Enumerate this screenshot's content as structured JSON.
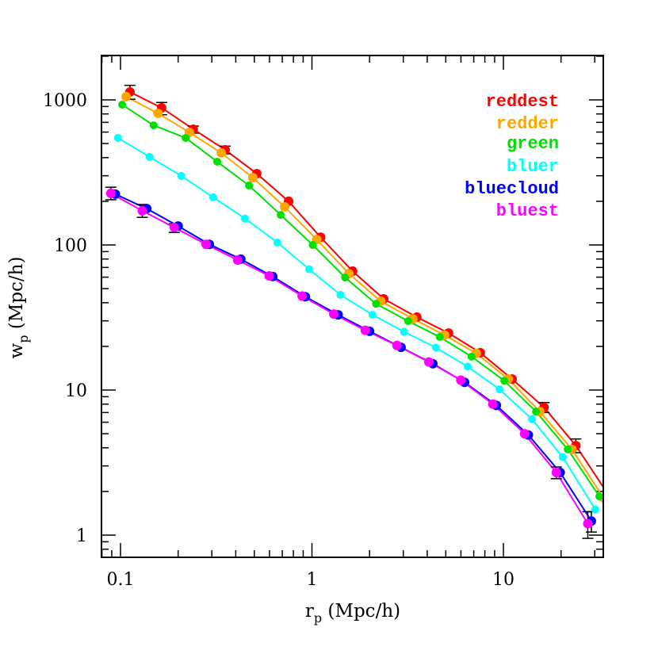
{
  "chart_data": {
    "type": "line",
    "title": "",
    "xlabel": "r_p (Mpc/h)",
    "ylabel": "w_p (Mpc/h)",
    "xscale": "log",
    "yscale": "log",
    "xlim": [
      0.08,
      34
    ],
    "ylim": [
      0.7,
      2020
    ],
    "xticks": [
      0.1,
      1,
      10
    ],
    "xtick_labels": [
      "0.1",
      "1",
      "10"
    ],
    "yticks": [
      1,
      10,
      100,
      1000
    ],
    "ytick_labels": [
      "1",
      "10",
      "100",
      "1000"
    ],
    "grid": false,
    "legend_position": "upper right",
    "markers": "filled circles with error bars",
    "series": [
      {
        "name": "reddest",
        "color": "#ff0000",
        "x": [
          0.112,
          0.164,
          0.24,
          0.352,
          0.515,
          0.755,
          1.11,
          1.63,
          2.37,
          3.53,
          5.17,
          7.57,
          11.1,
          16.3,
          23.9
        ],
        "y": [
          1134,
          882,
          628,
          453,
          310,
          200,
          113,
          66,
          42.5,
          31.8,
          24.7,
          18.1,
          11.9,
          7.6,
          4.14
        ],
        "line_end": [
          34,
          2.05
        ]
      },
      {
        "name": "redder",
        "color": "#ffa500",
        "x": [
          0.107,
          0.157,
          0.229,
          0.336,
          0.491,
          0.72,
          1.06,
          1.56,
          2.29,
          3.37,
          4.93,
          7.22,
          10.6,
          15.5,
          22.8,
          33.4
        ],
        "y": [
          1052,
          808,
          597,
          431,
          291,
          183,
          109,
          63.5,
          40.9,
          31.0,
          23.9,
          17.9,
          11.9,
          7.1,
          3.9,
          1.8
        ]
      },
      {
        "name": "green",
        "color": "#00e000",
        "x": [
          0.102,
          0.149,
          0.219,
          0.32,
          0.469,
          0.687,
          1.01,
          1.49,
          2.16,
          3.18,
          4.65,
          6.82,
          10.1,
          14.8,
          21.7,
          31.7
        ],
        "y": [
          927,
          668,
          547,
          375,
          257,
          161,
          100,
          59.7,
          39.3,
          29.9,
          23.2,
          17.0,
          11.6,
          7.1,
          3.9,
          1.85
        ]
      },
      {
        "name": "bluer",
        "color": "#00ffff",
        "x": [
          0.097,
          0.142,
          0.208,
          0.305,
          0.447,
          0.66,
          0.967,
          1.41,
          2.07,
          3.03,
          4.44,
          6.51,
          9.55,
          14.1,
          20.4,
          30.2
        ],
        "y": [
          547,
          404,
          299,
          213,
          152,
          104,
          68,
          45.3,
          33.0,
          25.2,
          19.6,
          14.5,
          10.1,
          6.3,
          3.45,
          1.5
        ]
      },
      {
        "name": "bluecloud",
        "color": "#0000ff",
        "x": [
          0.094,
          0.137,
          0.2,
          0.291,
          0.425,
          0.624,
          0.923,
          1.37,
          2.0,
          2.92,
          4.28,
          6.27,
          9.19,
          13.5,
          19.8,
          28.8
        ],
        "y": [
          224,
          178,
          135,
          101,
          79.8,
          60.6,
          44.0,
          33.0,
          25.4,
          19.7,
          15.2,
          11.3,
          7.84,
          4.9,
          2.7,
          1.25
        ]
      },
      {
        "name": "bluest",
        "color": "#ff00ff",
        "x": [
          0.089,
          0.13,
          0.191,
          0.28,
          0.409,
          0.598,
          0.888,
          1.3,
          1.9,
          2.78,
          4.08,
          5.99,
          8.81,
          12.9,
          18.9,
          27.6
        ],
        "y": [
          227,
          172,
          132,
          101,
          78.7,
          61.2,
          44.5,
          33.4,
          25.8,
          20.3,
          15.6,
          11.7,
          8.0,
          5.0,
          2.7,
          1.2
        ]
      }
    ],
    "error_bars": [
      {
        "series": "reddest",
        "x": 0.112,
        "y_low": 1010,
        "y_high": 1260
      },
      {
        "series": "reddest",
        "x": 0.164,
        "y_low": 790,
        "y_high": 960
      },
      {
        "series": "reddest",
        "x": 0.24,
        "y_low": 590,
        "y_high": 660
      },
      {
        "series": "reddest",
        "x": 0.352,
        "y_low": 425,
        "y_high": 480
      },
      {
        "series": "reddest",
        "x": 16.3,
        "y_low": 7.0,
        "y_high": 8.2
      },
      {
        "series": "reddest",
        "x": 23.9,
        "y_low": 3.7,
        "y_high": 4.6
      },
      {
        "series": "bluest",
        "x": 0.089,
        "y_low": 205,
        "y_high": 250
      },
      {
        "series": "bluest",
        "x": 0.13,
        "y_low": 155,
        "y_high": 190
      },
      {
        "series": "bluest",
        "x": 0.191,
        "y_low": 122,
        "y_high": 140
      },
      {
        "series": "bluest",
        "x": 18.9,
        "y_low": 2.45,
        "y_high": 2.95
      },
      {
        "series": "bluest",
        "x": 27.6,
        "y_low": 0.95,
        "y_high": 1.45
      },
      {
        "series": "bluecloud",
        "x": 28.8,
        "y_low": 1.05,
        "y_high": 1.45
      }
    ]
  },
  "legend": {
    "items": [
      {
        "label": "reddest",
        "color": "#ff0000"
      },
      {
        "label": "redder",
        "color": "#ffa500"
      },
      {
        "label": "green",
        "color": "#00e000"
      },
      {
        "label": "bluer",
        "color": "#00ffff"
      },
      {
        "label": "bluecloud",
        "color": "#0000ff"
      },
      {
        "label": "bluest",
        "color": "#ff00ff"
      }
    ]
  },
  "axes": {
    "x_title_main": "r",
    "x_title_sub": "p",
    "x_title_unit": " (Mpc/h)",
    "y_title_main": "w",
    "y_title_sub": "p",
    "y_title_unit": " (Mpc/h)"
  }
}
